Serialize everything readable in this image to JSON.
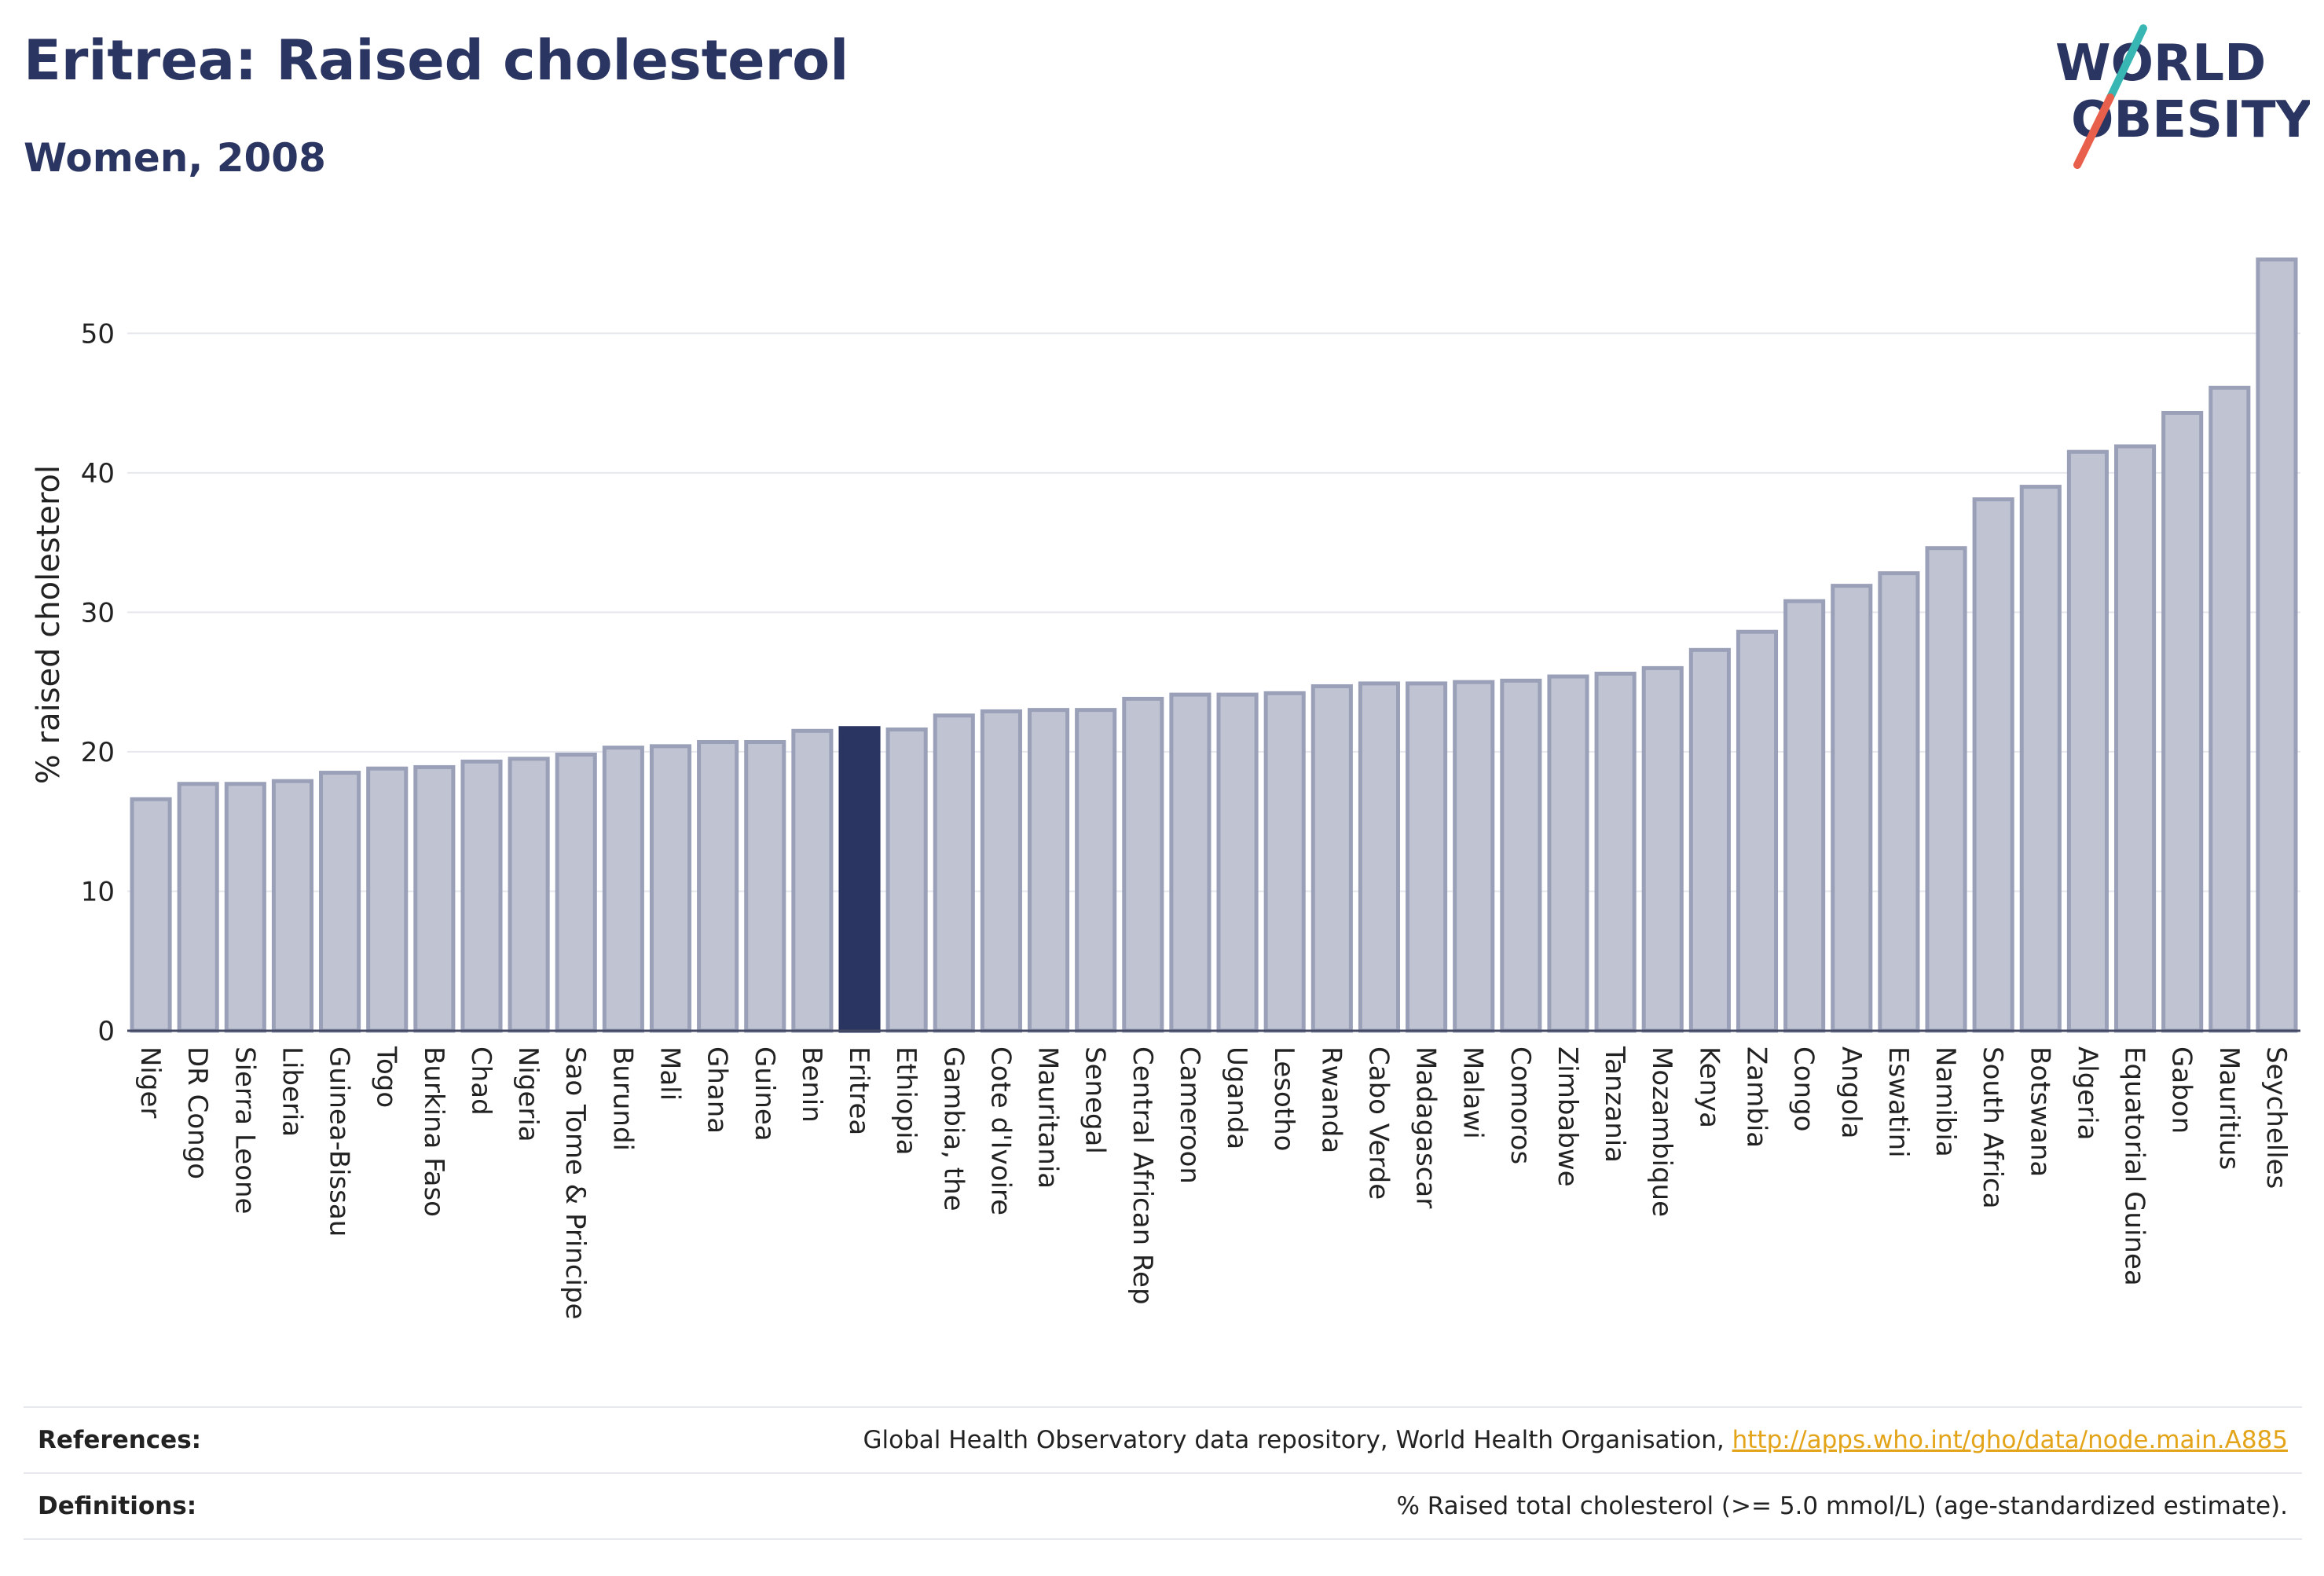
{
  "header": {
    "title": "Eritrea: Raised cholesterol",
    "subtitle": "Women, 2008"
  },
  "logo": {
    "line1": "WORLD",
    "line2": "OBESITY",
    "colors": {
      "text": "#2b3561",
      "slash_teal": "#38b6b4",
      "slash_red": "#e8604c"
    }
  },
  "chart_data": {
    "type": "bar",
    "title": "Eritrea: Raised cholesterol",
    "subtitle": "Women, 2008",
    "xlabel": "",
    "ylabel": "% raised cholesterol",
    "ylim": [
      0,
      57
    ],
    "yticks": [
      0,
      10,
      20,
      30,
      40,
      50
    ],
    "grid": true,
    "highlight": "Eritrea",
    "colors": {
      "bar": "#bfc3d2",
      "bar_edge": "#9aa0b8",
      "highlight": "#2b3561",
      "grid": "#e6e8ee"
    },
    "categories": [
      "Niger",
      "DR Congo",
      "Sierra Leone",
      "Liberia",
      "Guinea-Bissau",
      "Togo",
      "Burkina Faso",
      "Chad",
      "Nigeria",
      "Sao Tome & Principe",
      "Burundi",
      "Mali",
      "Ghana",
      "Guinea",
      "Benin",
      "Eritrea",
      "Ethiopia",
      "Gambia, the",
      "Cote d'Ivoire",
      "Mauritania",
      "Senegal",
      "Central African Rep",
      "Cameroon",
      "Uganda",
      "Lesotho",
      "Rwanda",
      "Cabo Verde",
      "Madagascar",
      "Malawi",
      "Comoros",
      "Zimbabwe",
      "Tanzania",
      "Mozambique",
      "Kenya",
      "Zambia",
      "Congo",
      "Angola",
      "Eswatini",
      "Namibia",
      "South Africa",
      "Botswana",
      "Algeria",
      "Equatorial Guinea",
      "Gabon",
      "Mauritius",
      "Seychelles"
    ],
    "values": [
      16.6,
      17.7,
      17.7,
      17.9,
      18.5,
      18.8,
      18.9,
      19.3,
      19.5,
      19.8,
      20.3,
      20.4,
      20.7,
      20.7,
      21.5,
      21.7,
      21.6,
      22.6,
      22.9,
      23.0,
      23.0,
      23.8,
      24.1,
      24.1,
      24.2,
      24.7,
      24.9,
      24.9,
      25.0,
      25.1,
      25.4,
      25.6,
      26.0,
      27.3,
      28.6,
      30.8,
      31.9,
      32.8,
      34.6,
      38.1,
      39.0,
      41.5,
      41.9,
      44.3,
      46.1,
      55.3
    ]
  },
  "footer": {
    "references_label": "References:",
    "references_text": "Global Health Observatory data repository, World Health Organisation,",
    "references_link": "http://apps.who.int/gho/data/node.main.A885",
    "definitions_label": "Definitions:",
    "definitions_text": "% Raised total cholesterol (>= 5.0 mmol/L) (age-standardized estimate)."
  }
}
